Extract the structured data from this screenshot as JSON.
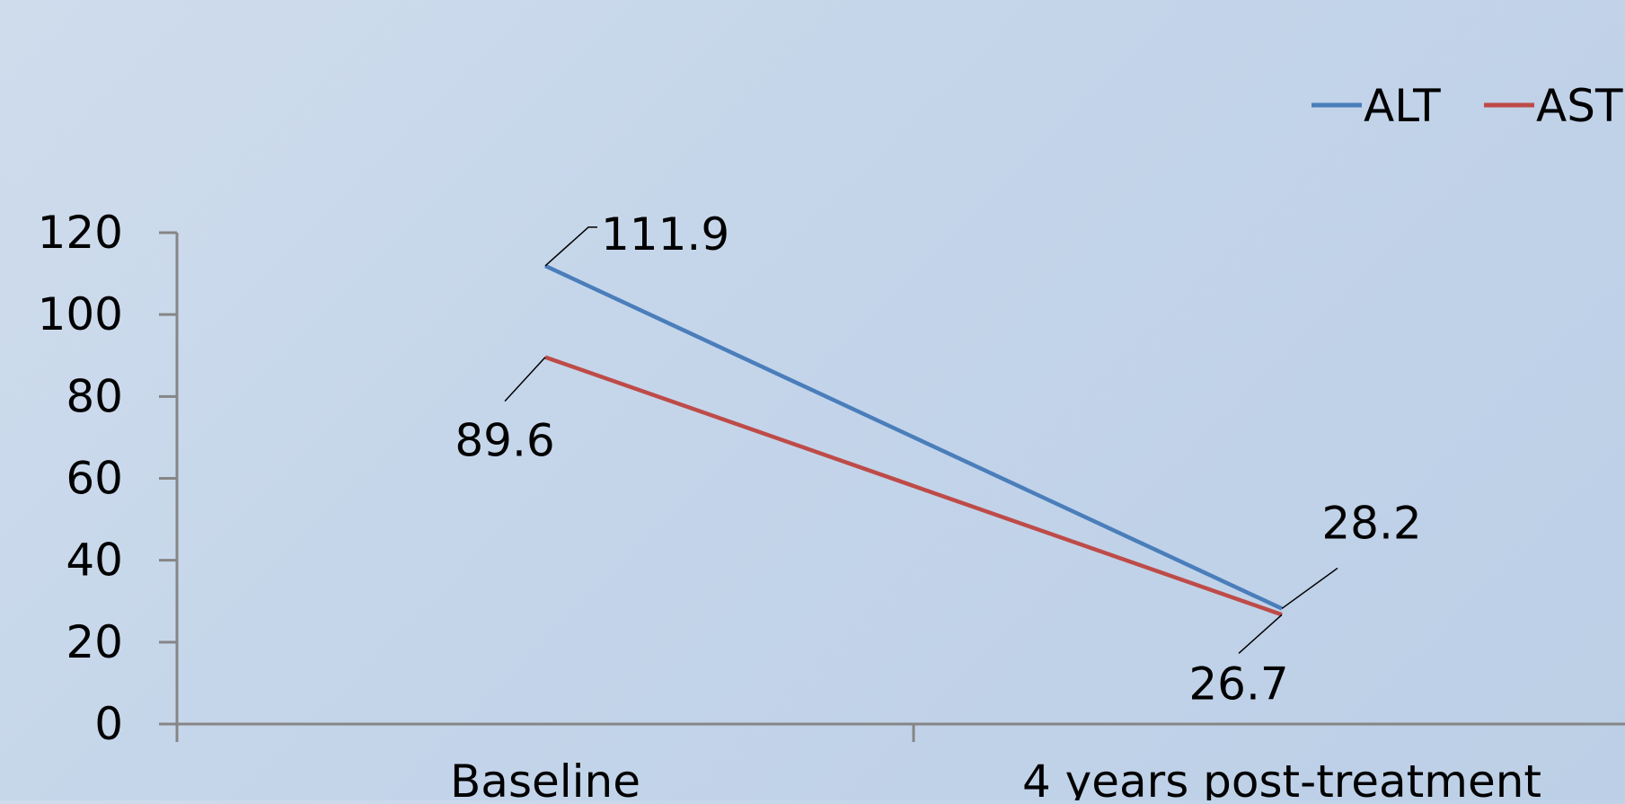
{
  "chart_data": {
    "type": "line",
    "categories": [
      "Baseline",
      "4 years post-treatment"
    ],
    "series": [
      {
        "name": "ALT",
        "values": [
          111.9,
          28.2
        ],
        "color": "#4a7ebb",
        "data_labels": [
          "111.9",
          "28.2"
        ]
      },
      {
        "name": "AST",
        "values": [
          89.6,
          26.7
        ],
        "color": "#be4b48",
        "data_labels": [
          "89.6",
          "26.7"
        ]
      }
    ],
    "ylim": [
      0,
      120
    ],
    "yticks": [
      0,
      20,
      40,
      60,
      80,
      100,
      120
    ],
    "ytick_labels": [
      "0",
      "20",
      "40",
      "60",
      "80",
      "100",
      "120"
    ],
    "title": "",
    "xlabel": "",
    "ylabel": "",
    "grid": false,
    "legend_position": "top-right",
    "axis_color": "#868686",
    "leader_line_color": "#000000"
  }
}
